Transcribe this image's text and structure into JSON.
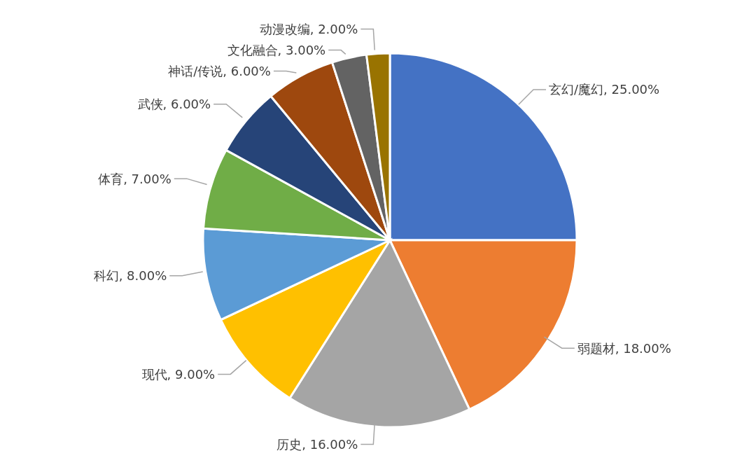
{
  "chart_data": {
    "type": "pie",
    "categories": [
      "玄幻/魔幻",
      "弱题材",
      "历史",
      "现代",
      "科幻",
      "体育",
      "武侠",
      "神话/传说",
      "文化融合",
      "动漫改编"
    ],
    "values": [
      25,
      18,
      16,
      9,
      8,
      7,
      6,
      6,
      3,
      2
    ],
    "value_labels": [
      "25.00%",
      "18.00%",
      "16.00%",
      "9.00%",
      "8.00%",
      "7.00%",
      "6.00%",
      "6.00%",
      "3.00%",
      "2.00%"
    ],
    "colors": [
      "#4472c4",
      "#ed7d31",
      "#a5a5a5",
      "#ffc000",
      "#5b9bd5",
      "#70ad47",
      "#264478",
      "#9e480e",
      "#636363",
      "#997300"
    ],
    "legend": false
  }
}
